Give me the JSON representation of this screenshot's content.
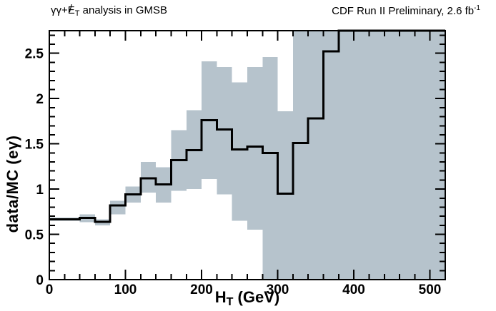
{
  "figure": {
    "title_left": {
      "prefix": "γγ+",
      "met_e": "E",
      "met_slash": "/",
      "met_sub": "T",
      "suffix": " analysis in GMSB"
    },
    "title_right": {
      "text": "CDF Run II Preliminary, 2.6 fb",
      "sup": "-1"
    },
    "x_axis": {
      "label_main": "H",
      "label_sub": "T",
      "label_rest": " (GeV)"
    },
    "y_axis": {
      "label": "data/MC (eγ)"
    }
  },
  "chart_data": {
    "type": "step-histogram-with-uncertainty-band",
    "title": "γγ+E̸T analysis in GMSB",
    "subtitle": "CDF Run II Preliminary, 2.6 fb⁻¹",
    "xlabel": "HT (GeV)",
    "ylabel": "data/MC (eγ)",
    "xlim": [
      0,
      520
    ],
    "ylim": [
      0,
      2.75
    ],
    "grid": false,
    "legend": "none",
    "x_major_ticks": [
      0,
      100,
      200,
      300,
      400,
      500
    ],
    "x_tick_labels": [
      "0",
      "100",
      "200",
      "300",
      "400",
      "500"
    ],
    "x_minor_step": 20,
    "y_major_ticks": [
      0,
      0.5,
      1,
      1.5,
      2,
      2.5
    ],
    "y_tick_labels": [
      "0",
      "0.5",
      "1",
      "1.5",
      "2",
      "2.5"
    ],
    "y_minor_step": 0.1,
    "bin_edges": [
      0,
      20,
      40,
      60,
      80,
      100,
      120,
      140,
      160,
      180,
      200,
      220,
      240,
      260,
      280,
      300,
      320,
      340,
      360,
      380,
      400,
      420,
      440,
      460,
      480,
      500,
      520
    ],
    "series": [
      {
        "name": "data-mc-ratio",
        "type": "step",
        "color": "#000000",
        "line_width": 3,
        "values": [
          0.665,
          0.665,
          0.68,
          0.64,
          0.82,
          0.94,
          1.12,
          1.05,
          1.32,
          1.43,
          1.76,
          1.66,
          1.44,
          1.47,
          1.4,
          0.95,
          1.51,
          1.78,
          2.52,
          2.8,
          2.8,
          2.8,
          2.8,
          2.8,
          2.8,
          2.8
        ]
      },
      {
        "name": "mc-uncertainty-band",
        "type": "band",
        "color": "#b6c3cc",
        "lo": [
          0.65,
          0.65,
          0.635,
          0.6,
          0.72,
          0.85,
          0.96,
          0.85,
          0.98,
          1.0,
          1.11,
          0.94,
          0.65,
          0.55,
          0,
          0,
          0,
          0,
          0,
          0,
          0,
          0,
          0,
          0,
          0,
          0
        ],
        "hi": [
          0.685,
          0.685,
          0.72,
          0.665,
          0.87,
          1.03,
          1.3,
          1.24,
          1.65,
          1.87,
          2.41,
          2.35,
          2.18,
          2.35,
          2.46,
          1.86,
          2.8,
          2.8,
          2.8,
          2.8,
          2.8,
          2.8,
          2.8,
          2.8,
          2.8,
          2.8
        ]
      }
    ]
  }
}
